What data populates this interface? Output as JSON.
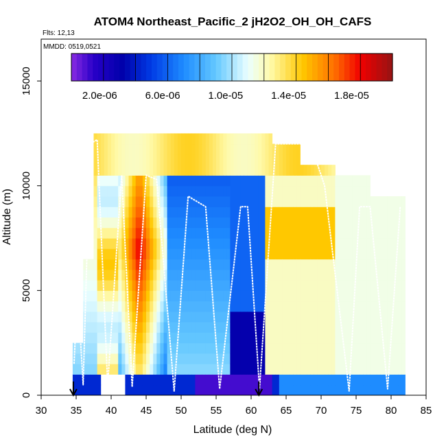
{
  "chart_data": {
    "type": "heatmap",
    "title": "ATOM4 Northeast_Pacific_2 jH2O2_OH_OH_CAFS",
    "subtitle_flights": "Flts: 12,13",
    "subtitle_dates": "MMDD: 0519,0521",
    "xlabel": "Latitude (deg N)",
    "ylabel": "Altitude (m)",
    "xlim": [
      30,
      85
    ],
    "ylim": [
      0,
      17000
    ],
    "xticks": [
      30,
      35,
      40,
      45,
      50,
      55,
      60,
      65,
      70,
      75,
      80,
      85
    ],
    "yticks": [
      0,
      5000,
      10000,
      15000
    ],
    "colorbar": {
      "min": 2e-07,
      "max": 2.06e-05,
      "ticks": [
        "2.0e-06",
        "6.0e-06",
        "1.0e-05",
        "1.4e-05",
        "1.8e-05"
      ],
      "tick_values": [
        2e-06,
        6e-06,
        1e-05,
        1.4e-05,
        1.8e-05
      ],
      "divisions": 10
    },
    "markers": [
      {
        "latitude": 34.6,
        "label": "start-arrow"
      },
      {
        "latitude": 61.1,
        "label": "end-arrow"
      }
    ],
    "flight_track_color": "#ffffff"
  }
}
